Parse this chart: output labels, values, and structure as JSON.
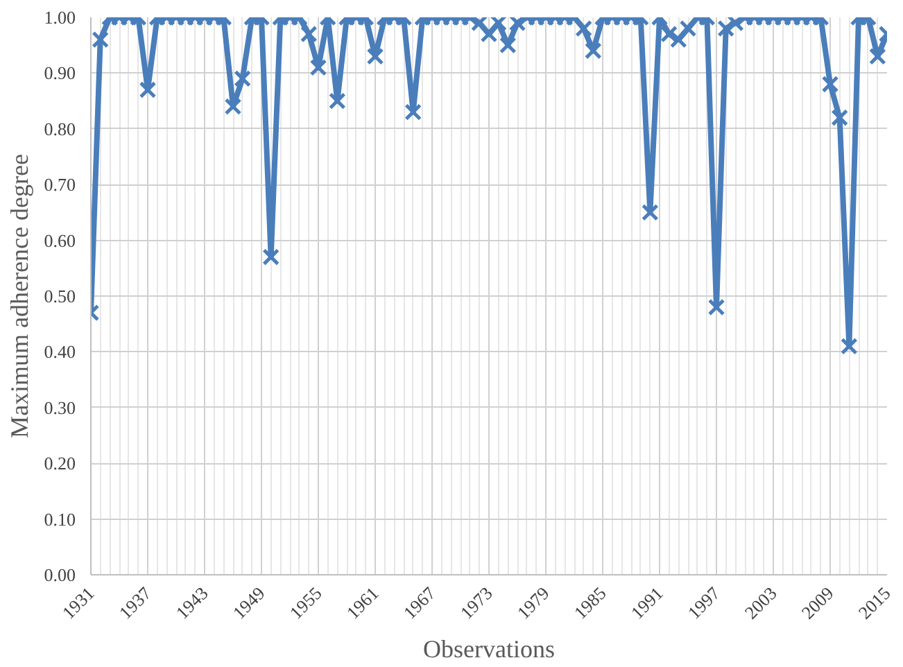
{
  "chart_data": {
    "type": "line",
    "xlabel": "Observations",
    "ylabel": "Maximum adherence degree",
    "x": [
      1931,
      1932,
      1933,
      1934,
      1935,
      1936,
      1937,
      1938,
      1939,
      1940,
      1941,
      1942,
      1943,
      1944,
      1945,
      1946,
      1947,
      1948,
      1949,
      1950,
      1951,
      1952,
      1953,
      1954,
      1955,
      1956,
      1957,
      1958,
      1959,
      1960,
      1961,
      1962,
      1963,
      1964,
      1965,
      1966,
      1967,
      1968,
      1969,
      1970,
      1971,
      1972,
      1973,
      1974,
      1975,
      1976,
      1977,
      1978,
      1979,
      1980,
      1981,
      1982,
      1983,
      1984,
      1985,
      1986,
      1987,
      1988,
      1989,
      1990,
      1991,
      1992,
      1993,
      1994,
      1995,
      1996,
      1997,
      1998,
      1999,
      2000,
      2001,
      2002,
      2003,
      2004,
      2005,
      2006,
      2007,
      2008,
      2009,
      2010,
      2011,
      2012,
      2013,
      2014,
      2015
    ],
    "series": [
      {
        "color": "#4a7ebb",
        "values": [
          0.47,
          0.96,
          1,
          1,
          1,
          1,
          0.87,
          1,
          1,
          1,
          1,
          1,
          1,
          1,
          1,
          0.84,
          0.89,
          1,
          1,
          0.57,
          1,
          1,
          1,
          0.97,
          0.91,
          1,
          0.85,
          1,
          1,
          1,
          0.93,
          1,
          1,
          1,
          0.83,
          1,
          1,
          1,
          1,
          1,
          1,
          0.99,
          0.97,
          0.99,
          0.95,
          0.99,
          1,
          1,
          1,
          1,
          1,
          1,
          0.98,
          0.94,
          1,
          1,
          1,
          1,
          1,
          0.65,
          1,
          0.97,
          0.96,
          0.98,
          1,
          1,
          0.48,
          0.98,
          0.99,
          1,
          1,
          1,
          1,
          1,
          1,
          1,
          1,
          1,
          0.88,
          0.82,
          0.41,
          1,
          1,
          0.93,
          0.97
        ]
      }
    ],
    "xlim": [
      1931,
      2015
    ],
    "xticks": [
      1931,
      1937,
      1943,
      1949,
      1955,
      1961,
      1967,
      1973,
      1979,
      1985,
      1991,
      1997,
      2003,
      2009,
      2015
    ],
    "ylim": [
      0,
      1
    ],
    "yticks": [
      {
        "value": 0,
        "label": "0.00"
      },
      {
        "value": 0.1,
        "label": "0.10"
      },
      {
        "value": 0.2,
        "label": "0.20"
      },
      {
        "value": 0.3,
        "label": "0.30"
      },
      {
        "value": 0.4,
        "label": "0.40"
      },
      {
        "value": 0.5,
        "label": "0.50"
      },
      {
        "value": 0.6,
        "label": "0.60"
      },
      {
        "value": 0.7,
        "label": "0.70"
      },
      {
        "value": 0.8,
        "label": "0.80"
      },
      {
        "value": 0.9,
        "label": "0.90"
      },
      {
        "value": 1,
        "label": "1.00"
      }
    ],
    "grid": true,
    "marker": "cross",
    "line_style": "solid"
  }
}
